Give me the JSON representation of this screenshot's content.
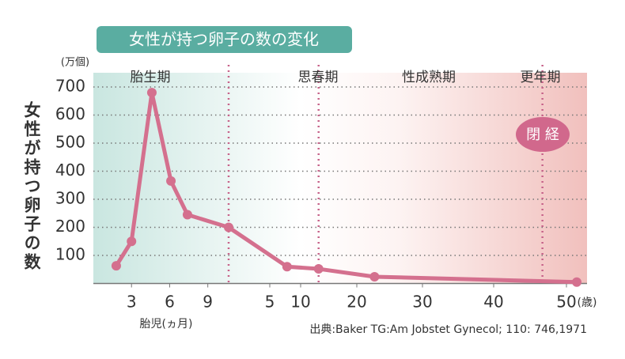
{
  "chart_data": {
    "type": "line",
    "title": "女性が持つ卵子の数の変化",
    "ylabel": "女性が持つ卵子の数",
    "yunit": "(万個)",
    "xlabel": "胎児(ヵ月)",
    "x2unit": "(歳)",
    "source": "出典:Baker TG:Am Jobstet Gynecol; 110: 746,1971",
    "ylim": [
      0,
      700
    ],
    "yticks": [
      100,
      200,
      300,
      400,
      500,
      600,
      700
    ],
    "xlim": [
      0,
      10.7
    ],
    "xticks": [
      3,
      6,
      9
    ],
    "x2lim": [
      0,
      52
    ],
    "x2ticks": [
      5,
      10,
      20,
      30,
      40,
      50
    ],
    "grid": true,
    "phases": [
      "胎生期",
      "思春期",
      "性成熟期",
      "更年期"
    ],
    "phase_boundaries_x2": [
      0,
      13.2,
      46.7
    ],
    "annotation": "閉 経",
    "x": [
      1.8,
      3,
      4.6,
      6.1,
      7.4,
      0,
      7.8,
      13.2,
      22.7,
      51
    ],
    "x_axis": [
      "x",
      "x",
      "x",
      "x",
      "x",
      "x2",
      "x2",
      "x2",
      "x2",
      "x2"
    ],
    "series": [
      {
        "color": "#d4708e",
        "values": [
          63,
          150,
          680,
          365,
          245,
          200,
          60,
          52,
          24,
          5
        ]
      }
    ]
  }
}
